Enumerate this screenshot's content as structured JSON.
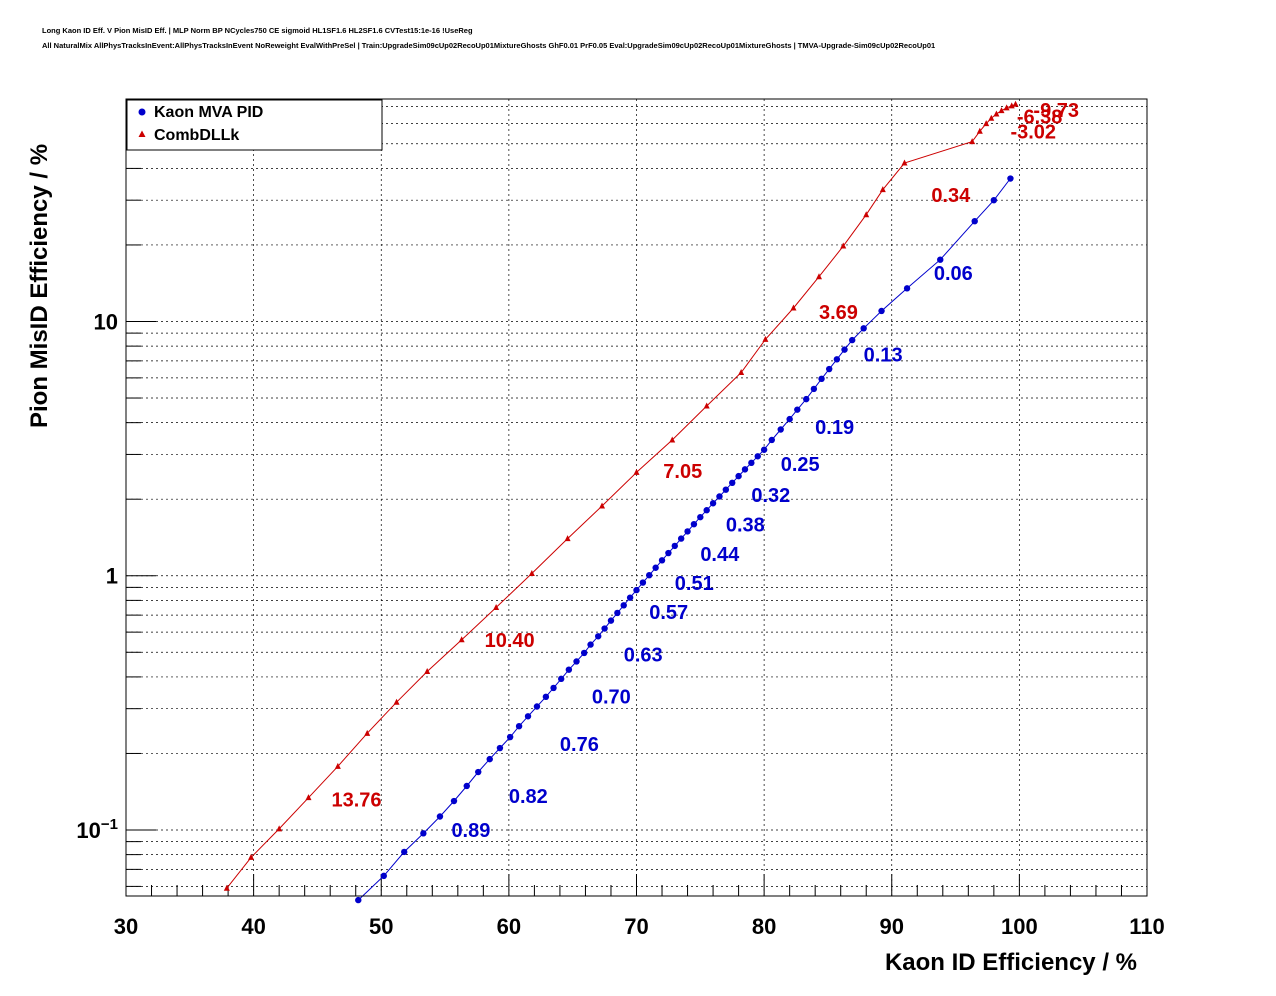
{
  "title_line1": "Long Kaon ID Eff. V Pion MisID Eff. | MLP Norm BP NCycles750 CE sigmoid HL1SF1.6 HL2SF1.6 CVTest15:1e-16 !UseReg",
  "title_line2": "All NaturalMix AllPhysTracksInEvent:AllPhysTracksInEvent NoReweight EvalWithPreSel | Train:UpgradeSim09cUp02RecoUp01MixtureGhosts GhF0.01 PrF0.05 Eval:UpgradeSim09cUp02RecoUp01MixtureGhosts | TMVA-Upgrade-Sim09cUp02RecoUp01",
  "chart_data": {
    "type": "scatter",
    "xlabel": "Kaon ID Efficiency / %",
    "ylabel": "Pion MisID Efficiency / %",
    "xlim": [
      30,
      110
    ],
    "ylim": [
      0.055,
      75
    ],
    "ylog": true,
    "grid": true,
    "legend_position": "top-left",
    "x_ticks": [
      30,
      40,
      50,
      60,
      70,
      80,
      90,
      100,
      110
    ],
    "x_tick_labels": [
      "30",
      "40",
      "50",
      "60",
      "70",
      "80",
      "90",
      "100",
      "110"
    ],
    "y_ticks": [
      0.1,
      1,
      10
    ],
    "y_tick_labels": [
      {
        "base": "10",
        "exp": "−1"
      },
      {
        "base": "1",
        "exp": ""
      },
      {
        "base": "10",
        "exp": ""
      }
    ],
    "series": [
      {
        "name": "Kaon MVA PID",
        "color": "#0000cc",
        "marker": "circle",
        "x": [
          48.2,
          50.2,
          51.8,
          53.3,
          54.6,
          55.7,
          56.7,
          57.6,
          58.5,
          59.3,
          60.1,
          60.8,
          61.5,
          62.2,
          62.9,
          63.5,
          64.1,
          64.7,
          65.3,
          65.9,
          66.4,
          67.0,
          67.5,
          68.0,
          68.5,
          69.0,
          69.5,
          70.0,
          70.5,
          71.0,
          71.5,
          72.0,
          72.5,
          73.0,
          73.5,
          74.0,
          74.5,
          75.0,
          75.5,
          76.0,
          76.5,
          77.0,
          77.5,
          78.0,
          78.5,
          79.0,
          79.5,
          80.0,
          80.6,
          81.3,
          82.0,
          82.6,
          83.3,
          83.9,
          84.5,
          85.1,
          85.7,
          86.3,
          86.9,
          87.8,
          89.2,
          91.2,
          93.8,
          96.5,
          98.0,
          99.3
        ],
        "y": [
          0.053,
          0.066,
          0.082,
          0.097,
          0.113,
          0.13,
          0.149,
          0.169,
          0.19,
          0.21,
          0.232,
          0.256,
          0.28,
          0.306,
          0.334,
          0.362,
          0.393,
          0.427,
          0.46,
          0.497,
          0.536,
          0.578,
          0.62,
          0.666,
          0.714,
          0.765,
          0.82,
          0.878,
          0.94,
          1.005,
          1.075,
          1.15,
          1.228,
          1.31,
          1.4,
          1.494,
          1.595,
          1.7,
          1.81,
          1.928,
          2.05,
          2.18,
          2.32,
          2.465,
          2.62,
          2.78,
          2.95,
          3.13,
          3.42,
          3.76,
          4.13,
          4.5,
          4.95,
          5.43,
          5.95,
          6.5,
          7.1,
          7.75,
          8.45,
          9.4,
          11.0,
          13.5,
          17.5,
          24.8,
          30.0,
          36.5
        ]
      },
      {
        "name": "CombDLLk",
        "color": "#cc0000",
        "marker": "triangle",
        "x": [
          37.9,
          39.8,
          42.0,
          44.3,
          46.6,
          48.9,
          51.2,
          53.6,
          56.3,
          59.0,
          61.8,
          64.6,
          67.3,
          70.0,
          72.8,
          75.5,
          78.2,
          80.1,
          82.3,
          84.3,
          86.2,
          88.0,
          89.3,
          91.0,
          96.3,
          96.9,
          97.4,
          97.8,
          98.2,
          98.6,
          99.0,
          99.4,
          99.7
        ],
        "y": [
          0.059,
          0.078,
          0.101,
          0.134,
          0.178,
          0.24,
          0.318,
          0.42,
          0.56,
          0.75,
          1.02,
          1.4,
          1.88,
          2.55,
          3.42,
          4.65,
          6.3,
          8.5,
          11.3,
          15.0,
          19.8,
          26.3,
          33.0,
          42.0,
          51.0,
          56.0,
          60.0,
          63.0,
          65.5,
          67.5,
          69.2,
          70.5,
          71.5
        ]
      }
    ],
    "annotations": [
      {
        "text": "0.89",
        "x": 55.5,
        "y": 0.1,
        "color": "#0000cc"
      },
      {
        "text": "0.82",
        "x": 60.0,
        "y": 0.136,
        "color": "#0000cc"
      },
      {
        "text": "0.76",
        "x": 64.0,
        "y": 0.218,
        "color": "#0000cc"
      },
      {
        "text": "0.70",
        "x": 66.5,
        "y": 0.335,
        "color": "#0000cc"
      },
      {
        "text": "0.63",
        "x": 69.0,
        "y": 0.49,
        "color": "#0000cc"
      },
      {
        "text": "0.57",
        "x": 71.0,
        "y": 0.72,
        "color": "#0000cc"
      },
      {
        "text": "0.51",
        "x": 73.0,
        "y": 0.935,
        "color": "#0000cc"
      },
      {
        "text": "0.44",
        "x": 75.0,
        "y": 1.215,
        "color": "#0000cc"
      },
      {
        "text": "0.38",
        "x": 77.0,
        "y": 1.59,
        "color": "#0000cc"
      },
      {
        "text": "0.32",
        "x": 79.0,
        "y": 2.08,
        "color": "#0000cc"
      },
      {
        "text": "0.25",
        "x": 81.3,
        "y": 2.75,
        "color": "#0000cc"
      },
      {
        "text": "0.19",
        "x": 84.0,
        "y": 3.85,
        "color": "#0000cc"
      },
      {
        "text": "0.13",
        "x": 87.8,
        "y": 7.4,
        "color": "#0000cc"
      },
      {
        "text": "0.06",
        "x": 93.3,
        "y": 15.5,
        "color": "#0000cc"
      },
      {
        "text": "13.76",
        "x": 46.1,
        "y": 0.132,
        "color": "#cc0000"
      },
      {
        "text": "10.40",
        "x": 58.1,
        "y": 0.56,
        "color": "#cc0000"
      },
      {
        "text": "7.05",
        "x": 72.1,
        "y": 2.58,
        "color": "#cc0000"
      },
      {
        "text": "3.69",
        "x": 84.3,
        "y": 10.9,
        "color": "#cc0000"
      },
      {
        "text": "0.34",
        "x": 93.1,
        "y": 31.5,
        "color": "#cc0000"
      },
      {
        "text": "-3.02",
        "x": 99.3,
        "y": 56.0,
        "color": "#cc0000"
      },
      {
        "text": "-6.38",
        "x": 99.8,
        "y": 64.0,
        "color": "#cc0000"
      },
      {
        "text": "-9.73",
        "x": 101.1,
        "y": 68.0,
        "color": "#cc0000"
      }
    ]
  }
}
